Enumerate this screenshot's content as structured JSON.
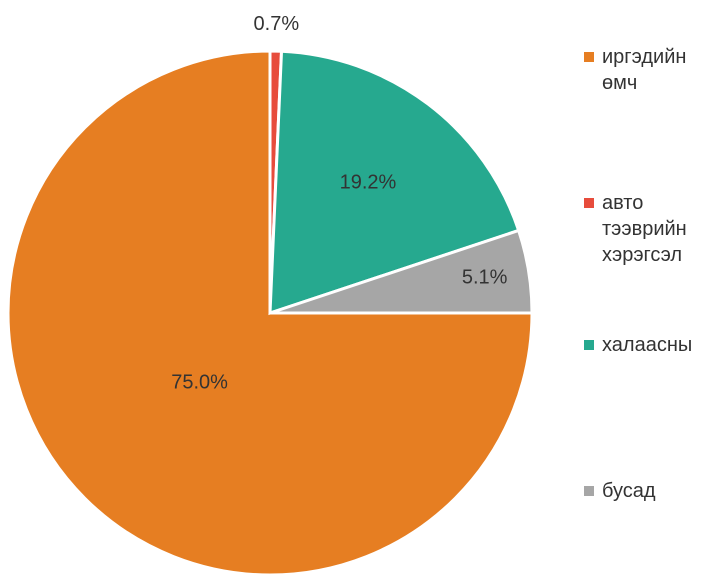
{
  "chart_data": {
    "type": "pie",
    "categories": [
      "иргэдийн өмч",
      "авто тээврийн хэрэгсэл",
      "халаасны",
      "бусад"
    ],
    "values": [
      75.0,
      0.7,
      19.2,
      5.1
    ],
    "value_labels": [
      "75.0%",
      "0.7%",
      "19.2%",
      "5.1%"
    ],
    "colors": [
      "#e67e22",
      "#e74c3c",
      "#26a98f",
      "#a6a6a6"
    ],
    "legend": "right"
  }
}
